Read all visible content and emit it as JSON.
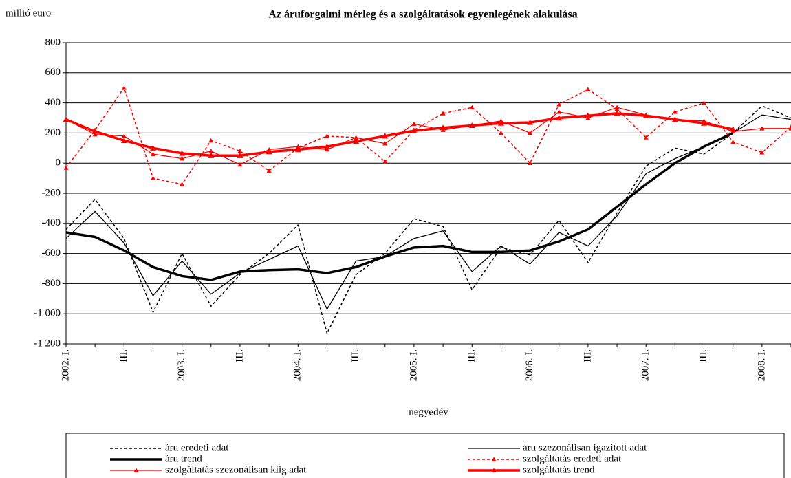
{
  "chart_data": {
    "type": "line",
    "title": "Az áruforgalmi mérleg és a szolgáltatások egyenlegének alakulása",
    "y_label": "millió euro",
    "x_label": "negyedév",
    "categories": [
      "2002. I.",
      null,
      "III.",
      null,
      "2003. I.",
      null,
      "III.",
      null,
      "2004. I.",
      null,
      "III.",
      null,
      "2005. I.",
      null,
      "III.",
      null,
      "2006. I.",
      null,
      "III.",
      null,
      "2007. I.",
      null,
      "III.",
      null,
      "2008. I.",
      null
    ],
    "ylim": [
      -1200,
      800
    ],
    "yticks": [
      {
        "value": -1200,
        "label": "-1 200"
      },
      {
        "value": -1000,
        "label": "-1 000"
      },
      -800,
      -600,
      -400,
      -200,
      0,
      200,
      400,
      600,
      800
    ],
    "grid": true,
    "series": [
      {
        "name": "áru eredeti adat",
        "color": "#000000",
        "dash": true,
        "width": 1.5,
        "values": [
          -440,
          -240,
          -500,
          -990,
          -600,
          -950,
          -740,
          -600,
          -410,
          -1130,
          -740,
          -600,
          -370,
          -420,
          -840,
          -560,
          -610,
          -380,
          -660,
          -330,
          -20,
          100,
          60,
          200,
          380,
          300
        ]
      },
      {
        "name": "áru szezonálisan igazított adat",
        "color": "#000000",
        "dash": false,
        "width": 1.3,
        "values": [
          -500,
          -320,
          -530,
          -880,
          -650,
          -870,
          -730,
          -640,
          -550,
          -970,
          -650,
          -620,
          -500,
          -450,
          -720,
          -550,
          -670,
          -460,
          -550,
          -350,
          -70,
          30,
          110,
          200,
          320,
          290
        ]
      },
      {
        "name": "áru trend",
        "color": "#000000",
        "dash": false,
        "width": 3.5,
        "values": [
          -460,
          -490,
          -580,
          -690,
          -750,
          -775,
          -720,
          -710,
          -705,
          -730,
          -690,
          -620,
          -560,
          -550,
          -590,
          -590,
          -580,
          -520,
          -440,
          -290,
          -140,
          0,
          110,
          200,
          null,
          null
        ]
      },
      {
        "name": "szolgáltatás eredeti adat",
        "color": "#ff0000",
        "dash": true,
        "width": 1.5,
        "marker": "triangle",
        "values": [
          -30,
          220,
          500,
          -100,
          -140,
          150,
          80,
          -50,
          100,
          180,
          170,
          10,
          220,
          330,
          370,
          200,
          0,
          390,
          490,
          360,
          170,
          340,
          400,
          140,
          70,
          240
        ]
      },
      {
        "name": "szolgáltatás szezonálisan kiig adat",
        "color": "#ff0000",
        "dash": false,
        "width": 1.3,
        "marker": "triangle",
        "values": [
          290,
          190,
          180,
          60,
          30,
          80,
          -10,
          90,
          110,
          90,
          170,
          130,
          260,
          220,
          250,
          280,
          200,
          340,
          300,
          370,
          320,
          290,
          280,
          210,
          230,
          230
        ]
      },
      {
        "name": "szolgáltatás trend",
        "color": "#ff0000",
        "dash": false,
        "width": 3.5,
        "marker": "triangle",
        "values": [
          290,
          210,
          150,
          100,
          65,
          50,
          50,
          75,
          90,
          110,
          145,
          180,
          215,
          235,
          250,
          265,
          270,
          300,
          315,
          330,
          315,
          290,
          265,
          225,
          null,
          null
        ]
      }
    ]
  }
}
